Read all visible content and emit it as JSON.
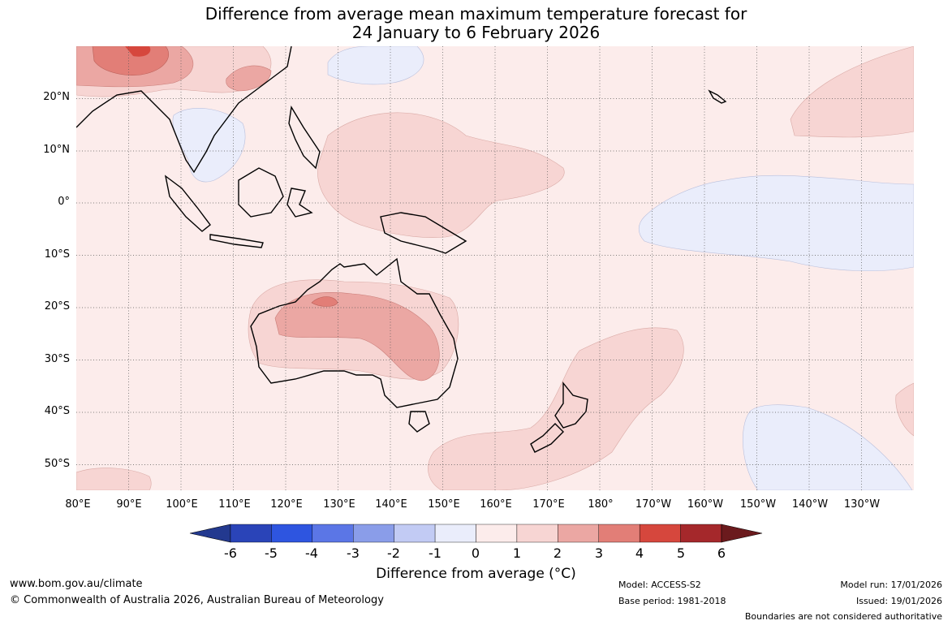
{
  "header": {
    "title_line1": "Difference from average mean maximum temperature forecast for",
    "title_line2": "24 January to 6 February 2026"
  },
  "map": {
    "region": "Australia, Maritime Continent and West Pacific",
    "lat_labels": [
      "20°N",
      "10°N",
      "0°",
      "10°S",
      "20°S",
      "30°S",
      "40°S",
      "50°S"
    ],
    "lon_labels": [
      "80°E",
      "90°E",
      "100°E",
      "110°E",
      "120°E",
      "130°E",
      "140°E",
      "150°E",
      "160°E",
      "170°E",
      "180°",
      "170°W",
      "160°W",
      "150°W",
      "140°W",
      "130°W"
    ],
    "background_colour": "#fceceb"
  },
  "colorbar": {
    "ticks": [
      "-6",
      "-5",
      "-4",
      "-3",
      "-2",
      "-1",
      "0",
      "1",
      "2",
      "3",
      "4",
      "5",
      "6"
    ],
    "colours": [
      "#23398f",
      "#2a44b8",
      "#2e55e0",
      "#5b76e6",
      "#8a9de9",
      "#c2cbf4",
      "#eaedfb",
      "#fceceb",
      "#f7d5d3",
      "#eba7a3",
      "#e27e77",
      "#d6473d",
      "#a5282b",
      "#6b1a1d"
    ],
    "label": "Difference from average (°C)"
  },
  "footer": {
    "website": "www.bom.gov.au/climate",
    "copyright": "© Commonwealth of Australia 2026, Australian Bureau of Meteorology",
    "model": "Model: ACCESS-S2",
    "base_period": "Base period: 1981-2018",
    "model_run": "Model run: 17/01/2026",
    "issued": "Issued: 19/01/2026",
    "disclaimer": "Boundaries are not considered authoritative"
  }
}
